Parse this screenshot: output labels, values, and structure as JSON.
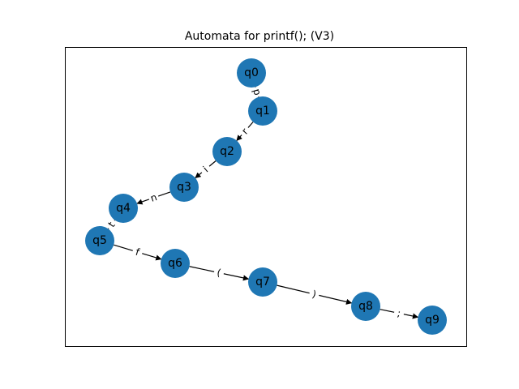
{
  "title": "Automata for printf(); (V3)",
  "colors": {
    "node_fill": "#1f77b4",
    "edge": "#000000",
    "frame": "#000000",
    "background": "#ffffff"
  },
  "nodes": [
    {
      "id": "q0",
      "label": "q0"
    },
    {
      "id": "q1",
      "label": "q1"
    },
    {
      "id": "q2",
      "label": "q2"
    },
    {
      "id": "q3",
      "label": "q3"
    },
    {
      "id": "q4",
      "label": "q4"
    },
    {
      "id": "q5",
      "label": "q5"
    },
    {
      "id": "q6",
      "label": "q6"
    },
    {
      "id": "q7",
      "label": "q7"
    },
    {
      "id": "q8",
      "label": "q8"
    },
    {
      "id": "q9",
      "label": "q9"
    }
  ],
  "edges": [
    {
      "from": "q0",
      "to": "q1",
      "label": "p"
    },
    {
      "from": "q1",
      "to": "q2",
      "label": "r"
    },
    {
      "from": "q2",
      "to": "q3",
      "label": "i"
    },
    {
      "from": "q3",
      "to": "q4",
      "label": "n"
    },
    {
      "from": "q4",
      "to": "q5",
      "label": "t"
    },
    {
      "from": "q5",
      "to": "q6",
      "label": "f"
    },
    {
      "from": "q6",
      "to": "q7",
      "label": "("
    },
    {
      "from": "q7",
      "to": "q8",
      "label": ")"
    },
    {
      "from": "q8",
      "to": "q9",
      "label": ";"
    }
  ]
}
